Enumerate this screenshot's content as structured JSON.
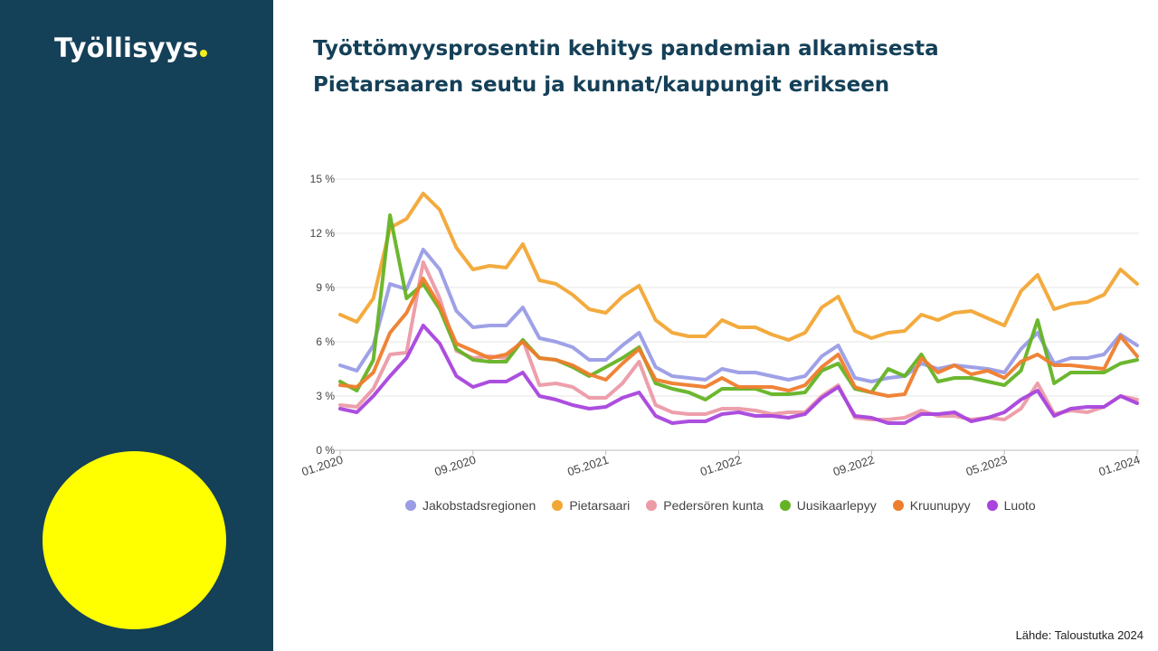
{
  "brand": {
    "name": "Työllisyys",
    "dot_color": "#F4EC1B"
  },
  "title": {
    "line1": "Työttömyysprosentin kehitys pandemian alkamisesta",
    "line2": "Pietarsaaren seutu ja kunnat/kaupungit erikseen"
  },
  "source": "Lähde: Taloustutka 2024",
  "colors": {
    "sidebar": "#144058",
    "sun": "#FFFF00",
    "title": "#144058"
  },
  "chart_data": {
    "type": "line",
    "title": "",
    "xlabel": "",
    "ylabel": "",
    "ylim": [
      0,
      15
    ],
    "y_ticks": [
      "0 %",
      "3 %",
      "6 %",
      "9 %",
      "12 %",
      "15 %"
    ],
    "x_tick_labels": [
      "01.2020",
      "09.2020",
      "05.2021",
      "01.2022",
      "09.2022",
      "05.2023",
      "01.2024"
    ],
    "x_tick_indices": [
      0,
      8,
      16,
      24,
      32,
      40,
      48
    ],
    "grid": true,
    "legend_position": "bottom",
    "series": [
      {
        "name": "Jakobstadsregionen",
        "color": "#9A9CE6",
        "values": [
          4.7,
          4.4,
          5.8,
          9.2,
          8.9,
          11.1,
          10.0,
          7.7,
          6.8,
          6.9,
          6.9,
          7.9,
          6.2,
          6.0,
          5.7,
          5.0,
          5.0,
          5.8,
          6.5,
          4.6,
          4.1,
          4.0,
          3.9,
          4.5,
          4.3,
          4.3,
          4.1,
          3.9,
          4.1,
          5.2,
          5.8,
          4.0,
          3.8,
          4.0,
          4.1,
          4.8,
          4.5,
          4.7,
          4.6,
          4.5,
          4.3,
          5.6,
          6.5,
          4.8,
          5.1,
          5.1,
          5.3,
          6.4,
          5.8
        ]
      },
      {
        "name": "Pietarsaari",
        "color": "#F2A735",
        "values": [
          7.5,
          7.1,
          8.4,
          12.3,
          12.8,
          14.2,
          13.3,
          11.2,
          10.0,
          10.2,
          10.1,
          11.4,
          9.4,
          9.2,
          8.6,
          7.8,
          7.6,
          8.5,
          9.1,
          7.2,
          6.5,
          6.3,
          6.3,
          7.2,
          6.8,
          6.8,
          6.4,
          6.1,
          6.5,
          7.9,
          8.5,
          6.6,
          6.2,
          6.5,
          6.6,
          7.5,
          7.2,
          7.6,
          7.7,
          7.3,
          6.9,
          8.8,
          9.7,
          7.8,
          8.1,
          8.2,
          8.6,
          10.0,
          9.2
        ]
      },
      {
        "name": "Pedersören kunta",
        "color": "#EC9AA6",
        "values": [
          2.5,
          2.4,
          3.4,
          5.3,
          5.4,
          10.4,
          8.4,
          5.5,
          5.1,
          5.2,
          5.1,
          6.1,
          3.6,
          3.7,
          3.5,
          2.9,
          2.9,
          3.7,
          4.9,
          2.5,
          2.1,
          2.0,
          2.0,
          2.3,
          2.3,
          2.2,
          2.0,
          2.1,
          2.1,
          3.0,
          3.6,
          1.8,
          1.7,
          1.7,
          1.8,
          2.2,
          1.9,
          1.9,
          1.7,
          1.8,
          1.7,
          2.3,
          3.7,
          2.0,
          2.2,
          2.1,
          2.4,
          3.0,
          2.8
        ]
      },
      {
        "name": "Uusikaarlepyy",
        "color": "#64B324",
        "values": [
          3.8,
          3.3,
          5.0,
          13.0,
          8.4,
          9.2,
          7.8,
          5.6,
          5.0,
          4.9,
          4.9,
          6.1,
          5.1,
          5.0,
          4.6,
          4.1,
          4.6,
          5.1,
          5.7,
          3.7,
          3.4,
          3.2,
          2.8,
          3.4,
          3.4,
          3.4,
          3.1,
          3.1,
          3.2,
          4.4,
          4.8,
          3.4,
          3.2,
          4.5,
          4.1,
          5.3,
          3.8,
          4.0,
          4.0,
          3.8,
          3.6,
          4.4,
          7.2,
          3.7,
          4.3,
          4.3,
          4.3,
          4.8,
          5.0
        ]
      },
      {
        "name": "Kruunupyy",
        "color": "#EE7D2D",
        "values": [
          3.6,
          3.5,
          4.3,
          6.5,
          7.6,
          9.5,
          8.0,
          5.9,
          5.5,
          5.1,
          5.3,
          6.0,
          5.1,
          5.0,
          4.7,
          4.2,
          3.9,
          4.8,
          5.6,
          3.9,
          3.7,
          3.6,
          3.5,
          4.0,
          3.5,
          3.5,
          3.5,
          3.3,
          3.6,
          4.6,
          5.3,
          3.5,
          3.2,
          3.0,
          3.1,
          5.1,
          4.3,
          4.7,
          4.2,
          4.4,
          4.0,
          4.9,
          5.3,
          4.7,
          4.7,
          4.6,
          4.5,
          6.3,
          5.2
        ]
      },
      {
        "name": "Luoto",
        "color": "#A844DD",
        "values": [
          2.3,
          2.1,
          3.0,
          4.1,
          5.1,
          6.9,
          5.9,
          4.1,
          3.5,
          3.8,
          3.8,
          4.3,
          3.0,
          2.8,
          2.5,
          2.3,
          2.4,
          2.9,
          3.2,
          1.9,
          1.5,
          1.6,
          1.6,
          2.0,
          2.1,
          1.9,
          1.9,
          1.8,
          2.0,
          2.9,
          3.5,
          1.9,
          1.8,
          1.5,
          1.5,
          2.0,
          2.0,
          2.1,
          1.6,
          1.8,
          2.1,
          2.8,
          3.3,
          1.9,
          2.3,
          2.4,
          2.4,
          3.0,
          2.6
        ]
      }
    ]
  }
}
